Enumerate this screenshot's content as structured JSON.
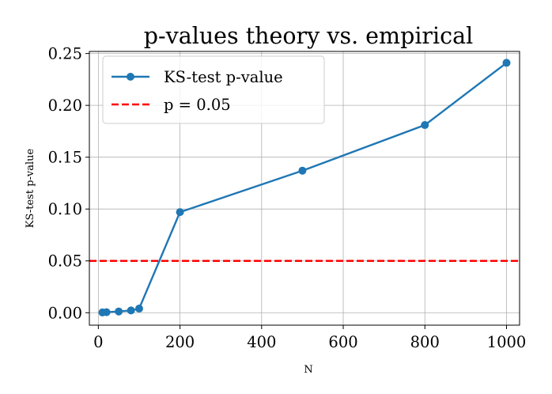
{
  "chart_data": {
    "type": "line",
    "title": "p-values theory vs. empirical",
    "xlabel": "N",
    "ylabel": "KS-test p-value",
    "xlim": [
      -22,
      1032
    ],
    "ylim": [
      -0.012,
      0.252
    ],
    "xticks": [
      0,
      200,
      400,
      600,
      800,
      1000
    ],
    "yticks": [
      0.0,
      0.05,
      0.1,
      0.15,
      0.2,
      0.25
    ],
    "ytick_labels": [
      "0.00",
      "0.05",
      "0.10",
      "0.15",
      "0.20",
      "0.25"
    ],
    "grid": true,
    "legend_position": "upper-left",
    "series": [
      {
        "name": "KS-test p-value",
        "color": "#1f77b4",
        "marker": "circle",
        "x": [
          10,
          20,
          50,
          80,
          100,
          200,
          500,
          800,
          1000
        ],
        "y": [
          0.0003,
          0.0005,
          0.0012,
          0.0022,
          0.004,
          0.097,
          0.137,
          0.181,
          0.241
        ]
      }
    ],
    "reference_lines": [
      {
        "name": "p = 0.05",
        "y": 0.05,
        "color": "#ff0000",
        "style": "dashed"
      }
    ]
  }
}
